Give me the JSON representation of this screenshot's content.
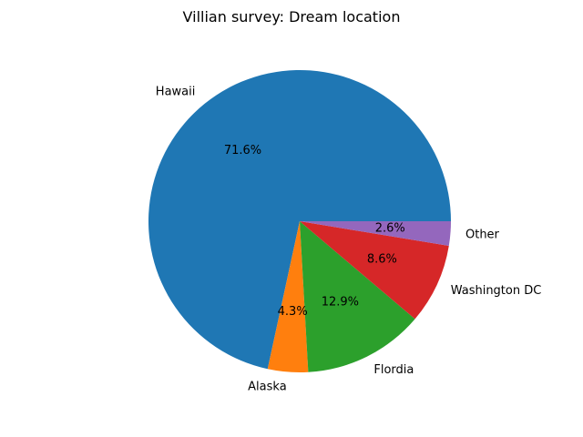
{
  "chart_data": {
    "type": "pie",
    "title": "Villian survey: Dream location",
    "categories": [
      "Hawaii",
      "Alaska",
      "Flordia",
      "Washington DC",
      "Other"
    ],
    "values": [
      71.6,
      4.3,
      12.9,
      8.6,
      2.6
    ],
    "value_labels": [
      "71.6%",
      "4.3%",
      "12.9%",
      "8.6%",
      "2.6%"
    ],
    "colors": [
      "#1f77b4",
      "#ff7f0e",
      "#2ca02c",
      "#d62728",
      "#9467bd"
    ],
    "start_angle_deg": 0,
    "direction": "counterclockwise"
  }
}
